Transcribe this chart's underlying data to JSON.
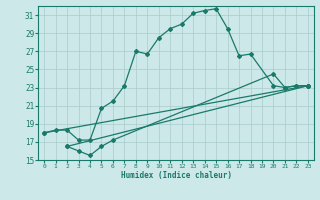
{
  "xlabel": "Humidex (Indice chaleur)",
  "bg_color": "#cce8e8",
  "grid_color": "#aacccc",
  "line_color": "#1a7a6a",
  "xlim": [
    -0.5,
    23.5
  ],
  "ylim": [
    15,
    32
  ],
  "yticks": [
    15,
    17,
    19,
    21,
    23,
    25,
    27,
    29,
    31
  ],
  "xticks": [
    0,
    1,
    2,
    3,
    4,
    5,
    6,
    7,
    8,
    9,
    10,
    11,
    12,
    13,
    14,
    15,
    16,
    17,
    18,
    19,
    20,
    21,
    22,
    23
  ],
  "curve1_x": [
    0,
    1,
    2,
    3,
    4,
    5,
    6,
    7,
    8,
    9,
    10,
    11,
    12,
    13,
    14,
    15,
    16,
    17,
    18,
    20,
    21,
    22,
    23
  ],
  "curve1_y": [
    18.0,
    18.3,
    18.3,
    17.2,
    17.2,
    20.7,
    21.5,
    23.2,
    27.0,
    26.7,
    28.5,
    29.5,
    30.0,
    31.2,
    31.5,
    31.7,
    29.5,
    26.5,
    26.7,
    23.2,
    23.0,
    23.2,
    23.2
  ],
  "curve2_x": [
    2,
    3,
    4,
    5,
    6,
    20,
    21,
    22,
    23
  ],
  "curve2_y": [
    16.5,
    16.0,
    15.5,
    16.5,
    17.2,
    24.5,
    23.0,
    23.2,
    23.2
  ],
  "curve3_x": [
    0,
    23
  ],
  "curve3_y": [
    18.0,
    23.2
  ],
  "curve4_x": [
    2,
    23
  ],
  "curve4_y": [
    16.5,
    23.2
  ]
}
